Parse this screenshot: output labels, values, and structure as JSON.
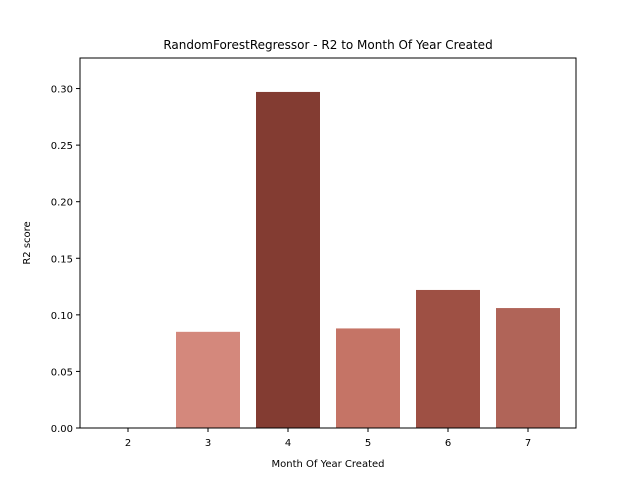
{
  "chart_data": {
    "type": "bar",
    "title": "RandomForestRegressor - R2 to Month Of Year Created",
    "xlabel": "Month Of Year Created",
    "ylabel": "R2 score",
    "categories": [
      "2",
      "3",
      "4",
      "5",
      "6",
      "7"
    ],
    "values": [
      0.0,
      0.085,
      0.297,
      0.088,
      0.122,
      0.106
    ],
    "colors": [
      "#ffffff",
      "#d4887c",
      "#833c32",
      "#c57466",
      "#9e5044",
      "#b06458"
    ],
    "ylim": [
      0,
      0.327
    ],
    "yticks": [
      "0.00",
      "0.05",
      "0.10",
      "0.15",
      "0.20",
      "0.25",
      "0.30"
    ],
    "ytick_values": [
      0,
      0.05,
      0.1,
      0.15,
      0.2,
      0.25,
      0.3
    ],
    "grid": false,
    "legend": "none"
  }
}
